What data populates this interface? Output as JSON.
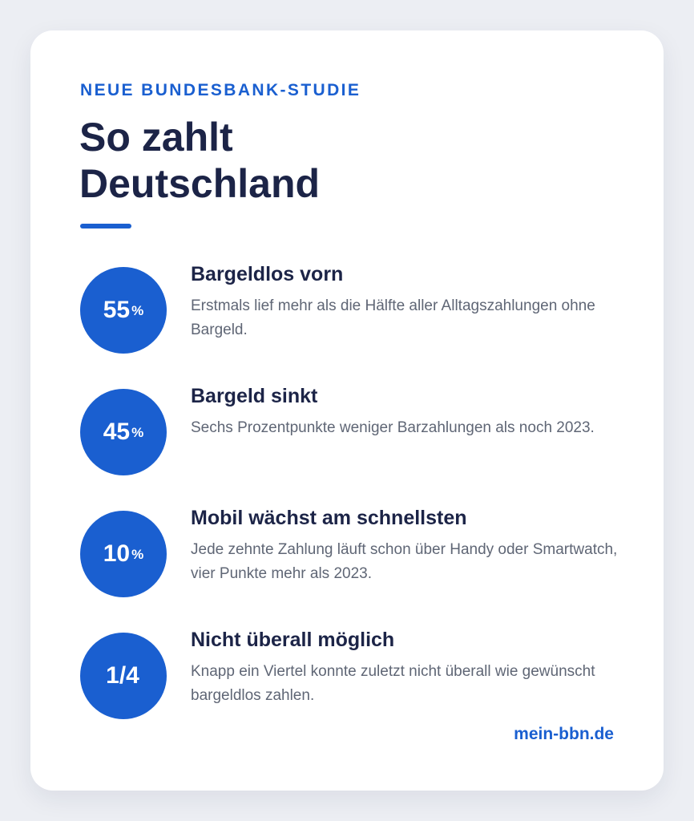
{
  "header": {
    "eyebrow": "NEUE BUNDESBANK-STUDIE",
    "title_line1": "So zahlt",
    "title_line2": "Deutschland"
  },
  "stats": [
    {
      "value": "55",
      "unit": "%",
      "heading": "Bargeldlos vorn",
      "text": "Erstmals lief mehr als die Hälfte aller Alltagszahlungen ohne Bargeld."
    },
    {
      "value": "45",
      "unit": "%",
      "heading": "Bargeld sinkt",
      "text": "Sechs Prozentpunkte weniger Barzahlungen als noch 2023."
    },
    {
      "value": "10",
      "unit": "%",
      "heading": "Mobil wächst am schnellsten",
      "text": "Jede zehnte Zahlung läuft schon über Handy oder Smartwatch, vier Punkte mehr als 2023."
    },
    {
      "value": "1/4",
      "unit": "",
      "heading": "Nicht überall möglich",
      "text": "Knapp ein Viertel konnte zuletzt nicht überall wie gewünscht bargeldlos zahlen."
    }
  ],
  "footer": {
    "link": "mein-bbn.de"
  },
  "colors": {
    "accent": "#1a5fd0",
    "heading": "#1c2447",
    "body_text": "#5f6675",
    "page_bg": "#eceef3",
    "card_bg": "#ffffff"
  }
}
